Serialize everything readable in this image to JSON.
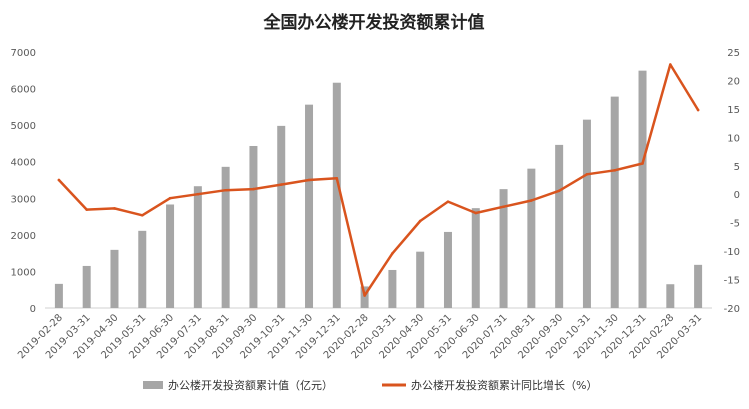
{
  "chart_data": {
    "type": "bar",
    "title": "全国办公楼开发投资额累计值",
    "categories": [
      "2019-02-28",
      "2019-03-31",
      "2019-04-30",
      "2019-05-31",
      "2019-06-30",
      "2019-07-31",
      "2019-08-31",
      "2019-09-30",
      "2019-10-31",
      "2019-11-30",
      "2019-12-31",
      "2020-02-28",
      "2020-03-31",
      "2020-04-30",
      "2020-05-31",
      "2020-06-30",
      "2020-07-31",
      "2020-08-31",
      "2020-09-30",
      "2020-10-31",
      "2020-11-30",
      "2020-12-31",
      "2020-02-28",
      "2020-03-31"
    ],
    "series": [
      {
        "name": "办公楼开发投资额累计值（亿元）",
        "type": "bar",
        "axis": "left",
        "color": "#a6a6a6",
        "values": [
          660,
          1150,
          1590,
          2110,
          2830,
          3330,
          3860,
          4430,
          4980,
          5560,
          6160,
          590,
          1040,
          1540,
          2080,
          2730,
          3250,
          3810,
          4460,
          5150,
          5780,
          6490,
          650,
          1180
        ]
      },
      {
        "name": "办公楼开发投资额累计同比增长（%）",
        "type": "line",
        "axis": "right",
        "color": "#d9541e",
        "values": [
          2.5,
          -2.7,
          -2.5,
          -3.7,
          -0.7,
          0.0,
          0.7,
          0.9,
          1.7,
          2.5,
          2.8,
          -17.8,
          -10.4,
          -4.7,
          -1.3,
          -3.3,
          -2.2,
          -1.1,
          0.6,
          3.5,
          4.2,
          5.4,
          22.8,
          14.8
        ]
      }
    ],
    "y_left": {
      "min": 0,
      "max": 7000,
      "step": 1000,
      "ticks": [
        "0",
        "1000",
        "2000",
        "3000",
        "4000",
        "5000",
        "6000",
        "7000"
      ]
    },
    "y_right": {
      "min": -20,
      "max": 25,
      "step": 5,
      "ticks": [
        "-20",
        "-15",
        "-10",
        "-5",
        "0",
        "5",
        "10",
        "15",
        "20",
        "25"
      ]
    },
    "grid": false,
    "legend_position": "bottom"
  }
}
